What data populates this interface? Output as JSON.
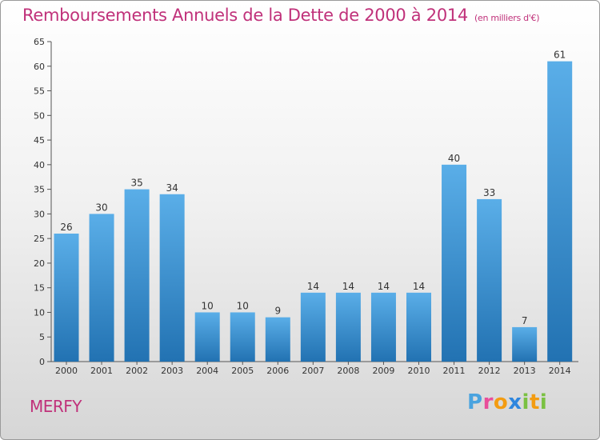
{
  "title": "Remboursements Annuels de la Dette de 2000 à 2014",
  "unit": "(en milliers d'€)",
  "commune": "MERFY",
  "logo_text": "Proxiti",
  "colors": {
    "accent": "#c0317a",
    "bar_top": "#5aaee8",
    "bar_bottom": "#2272b2"
  },
  "chart_data": {
    "type": "bar",
    "categories": [
      "2000",
      "2001",
      "2002",
      "2003",
      "2004",
      "2005",
      "2006",
      "2007",
      "2008",
      "2009",
      "2010",
      "2011",
      "2012",
      "2013",
      "2014"
    ],
    "values": [
      26,
      30,
      35,
      34,
      10,
      10,
      9,
      14,
      14,
      14,
      14,
      40,
      33,
      7,
      61
    ],
    "ylim": [
      0,
      65
    ],
    "yticks": [
      0,
      5,
      10,
      15,
      20,
      25,
      30,
      35,
      40,
      45,
      50,
      55,
      60,
      65
    ],
    "grid": false
  }
}
